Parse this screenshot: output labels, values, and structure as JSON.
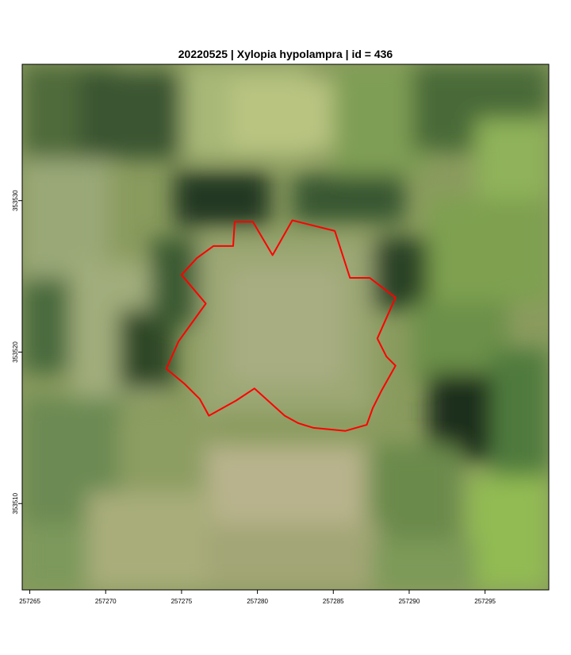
{
  "title": "20220525 | Xylopia hypolampra | id = 436",
  "map": {
    "x_axis": {
      "ticks": [
        257265,
        257270,
        257275,
        257280,
        257285,
        257290,
        257295
      ],
      "range": [
        257264.5,
        257299.2
      ]
    },
    "y_axis": {
      "ticks": [
        353510,
        353520,
        353530
      ],
      "range": [
        353504.3,
        353539.0
      ]
    },
    "crown_outline": {
      "color": "#ff0000",
      "points": [
        [
          257277.1,
          353527.0
        ],
        [
          257278.4,
          353527.0
        ],
        [
          257278.5,
          353528.6
        ],
        [
          257279.7,
          353528.6
        ],
        [
          257281.0,
          353526.4
        ],
        [
          257282.3,
          353528.7
        ],
        [
          257285.1,
          353528.0
        ],
        [
          257286.1,
          353524.9
        ],
        [
          257287.4,
          353524.9
        ],
        [
          257289.1,
          353523.6
        ],
        [
          257287.9,
          353520.9
        ],
        [
          257288.5,
          353519.7
        ],
        [
          257289.1,
          353519.1
        ],
        [
          257288.2,
          353517.5
        ],
        [
          257287.6,
          353516.3
        ],
        [
          257287.2,
          353515.2
        ],
        [
          257285.8,
          353514.8
        ],
        [
          257283.7,
          353515.0
        ],
        [
          257282.7,
          353515.3
        ],
        [
          257281.8,
          353515.8
        ],
        [
          257279.8,
          353517.6
        ],
        [
          257278.6,
          353516.8
        ],
        [
          257276.8,
          353515.8
        ],
        [
          257276.2,
          353516.9
        ],
        [
          257275.2,
          353517.9
        ],
        [
          257274.0,
          353518.9
        ],
        [
          257274.8,
          353520.7
        ],
        [
          257276.6,
          353523.2
        ],
        [
          257275.0,
          353525.1
        ],
        [
          257276.0,
          353526.2
        ]
      ]
    }
  },
  "imagery": {
    "palette": {
      "dark": "#1f3020",
      "deep": "#2f4a2c",
      "mid": "#5f7e45",
      "green": "#86a455",
      "light": "#a8b77a",
      "pale": "#b4b38a",
      "bright": "#9ec462",
      "yellow": "#b7c56a"
    }
  }
}
